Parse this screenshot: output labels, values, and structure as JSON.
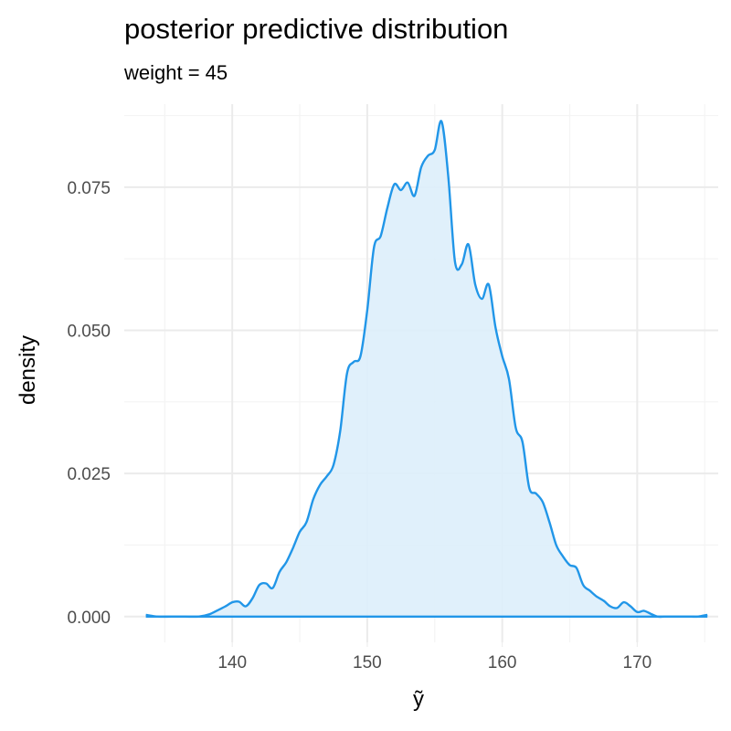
{
  "chart_data": {
    "type": "area",
    "title": "posterior predictive distribution",
    "subtitle": "weight = 45",
    "xlabel": "ỹ",
    "ylabel": "density",
    "xlim": [
      132,
      176
    ],
    "ylim": [
      -0.0045,
      0.0895
    ],
    "x_ticks": [
      140,
      150,
      160,
      170
    ],
    "x_tick_labels": [
      "140",
      "150",
      "160",
      "170"
    ],
    "y_ticks": [
      0,
      0.025,
      0.05,
      0.075
    ],
    "y_tick_labels": [
      "0.000",
      "0.025",
      "0.050",
      "0.075"
    ],
    "grid": true,
    "line_color": "#2196e8",
    "fill_color": "#ddeefb",
    "series": [
      {
        "x": [
          133.6,
          134.5,
          135.5,
          136.5,
          137.5,
          138.3,
          139.0,
          139.5,
          140.0,
          140.5,
          141.0,
          141.5,
          142.0,
          142.5,
          143.0,
          143.5,
          144.0,
          144.5,
          145.0,
          145.5,
          146.0,
          146.5,
          147.0,
          147.5,
          148.0,
          148.5,
          149.0,
          149.5,
          150.0,
          150.5,
          151.0,
          151.5,
          152.0,
          152.5,
          153.0,
          153.5,
          154.0,
          154.5,
          155.0,
          155.5,
          156.0,
          156.5,
          157.0,
          157.5,
          158.0,
          158.5,
          159.0,
          159.5,
          160.0,
          160.5,
          161.0,
          161.5,
          162.0,
          162.5,
          163.0,
          163.5,
          164.0,
          164.5,
          165.0,
          165.5,
          166.0,
          166.5,
          167.0,
          167.5,
          168.0,
          168.5,
          169.0,
          169.5,
          170.0,
          170.5,
          171.0,
          171.5,
          172.0,
          172.5,
          173.0,
          173.5,
          174.0,
          174.5,
          175.2
        ],
        "y": [
          0.0003,
          0.0,
          0.0,
          0.0,
          0.0,
          0.0004,
          0.0012,
          0.0018,
          0.0025,
          0.0026,
          0.0018,
          0.0032,
          0.0055,
          0.0058,
          0.005,
          0.0078,
          0.0095,
          0.012,
          0.0148,
          0.0165,
          0.0205,
          0.023,
          0.0245,
          0.0265,
          0.0325,
          0.0425,
          0.0445,
          0.0455,
          0.0535,
          0.0645,
          0.0665,
          0.0715,
          0.0755,
          0.0745,
          0.0758,
          0.0735,
          0.0785,
          0.0805,
          0.0815,
          0.0865,
          0.077,
          0.062,
          0.0615,
          0.065,
          0.058,
          0.0555,
          0.058,
          0.0505,
          0.0455,
          0.0415,
          0.033,
          0.0305,
          0.0225,
          0.0215,
          0.02,
          0.0165,
          0.0125,
          0.0105,
          0.009,
          0.0085,
          0.0055,
          0.0045,
          0.0035,
          0.0028,
          0.0018,
          0.0015,
          0.0025,
          0.0018,
          0.0008,
          0.001,
          0.0005,
          0.0,
          0.0,
          0.0,
          0.0,
          0.0,
          0.0,
          0.0,
          0.0003
        ]
      }
    ]
  }
}
